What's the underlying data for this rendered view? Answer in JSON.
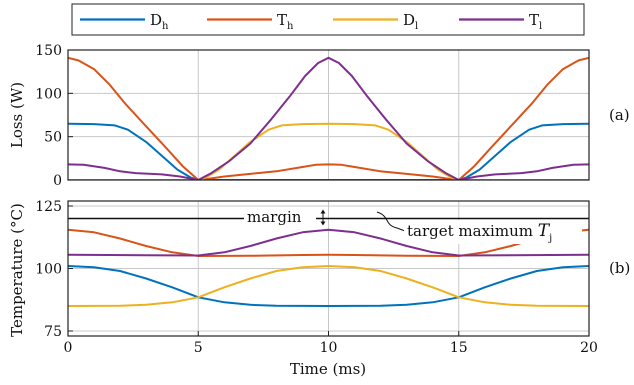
{
  "chart_data": [
    {
      "type": "line",
      "panel_label": "(a)",
      "xlabel": "",
      "ylabel": "Loss (W)",
      "xlim": [
        0,
        20
      ],
      "ylim": [
        0,
        150
      ],
      "xticks": [
        0,
        5,
        10,
        15,
        20
      ],
      "yticks": [
        0,
        50,
        100,
        150
      ],
      "grid": true,
      "legend": {
        "placement": "top",
        "entries": [
          {
            "base": "D",
            "sub": "h",
            "color": "#0072BD"
          },
          {
            "base": "T",
            "sub": "h",
            "color": "#D95319"
          },
          {
            "base": "D",
            "sub": "l",
            "color": "#EDB120"
          },
          {
            "base": "T",
            "sub": "l",
            "color": "#7E2F8E"
          }
        ]
      },
      "series": [
        {
          "label": "Dh",
          "color": "#0072BD",
          "points": [
            [
              0,
              65
            ],
            [
              1,
              64.5
            ],
            [
              1.8,
              63
            ],
            [
              2.3,
              58
            ],
            [
              3,
              44
            ],
            [
              3.6,
              28
            ],
            [
              4.2,
              12
            ],
            [
              4.7,
              3
            ],
            [
              5,
              0
            ],
            [
              15,
              0
            ],
            [
              15.3,
              3
            ],
            [
              15.8,
              12
            ],
            [
              16.4,
              28
            ],
            [
              17,
              44
            ],
            [
              17.7,
              58
            ],
            [
              18.2,
              63
            ],
            [
              19,
              64.5
            ],
            [
              20,
              65
            ]
          ]
        },
        {
          "label": "Th",
          "color": "#D95319",
          "points": [
            [
              0,
              141
            ],
            [
              0.4,
              138
            ],
            [
              1,
              128
            ],
            [
              1.6,
              110
            ],
            [
              2.2,
              88
            ],
            [
              3,
              62
            ],
            [
              3.8,
              36
            ],
            [
              4.4,
              16
            ],
            [
              5,
              0
            ],
            [
              5.3,
              1
            ],
            [
              6,
              4
            ],
            [
              7,
              7
            ],
            [
              8,
              10
            ],
            [
              9,
              15
            ],
            [
              9.5,
              17.5
            ],
            [
              10,
              18
            ],
            [
              10.5,
              17.5
            ],
            [
              11,
              15
            ],
            [
              12,
              10
            ],
            [
              13,
              7
            ],
            [
              14,
              4
            ],
            [
              14.7,
              1
            ],
            [
              15,
              0
            ],
            [
              15.6,
              16
            ],
            [
              16.2,
              36
            ],
            [
              17,
              62
            ],
            [
              17.8,
              88
            ],
            [
              18.4,
              110
            ],
            [
              19,
              128
            ],
            [
              19.6,
              138
            ],
            [
              20,
              141
            ]
          ]
        },
        {
          "label": "Dl",
          "color": "#EDB120",
          "points": [
            [
              0,
              0
            ],
            [
              5,
              0
            ],
            [
              5.3,
              3
            ],
            [
              5.8,
              12
            ],
            [
              6.4,
              28
            ],
            [
              7,
              44
            ],
            [
              7.7,
              58
            ],
            [
              8.2,
              63
            ],
            [
              9,
              64.5
            ],
            [
              10,
              65
            ],
            [
              11,
              64.5
            ],
            [
              11.8,
              63
            ],
            [
              12.3,
              58
            ],
            [
              13,
              44
            ],
            [
              13.6,
              28
            ],
            [
              14.2,
              12
            ],
            [
              14.7,
              3
            ],
            [
              15,
              0
            ],
            [
              20,
              0
            ]
          ]
        },
        {
          "label": "Tl",
          "color": "#7E2F8E",
          "points": [
            [
              0,
              18
            ],
            [
              0.6,
              17.5
            ],
            [
              1.4,
              14
            ],
            [
              2,
              10
            ],
            [
              2.6,
              8
            ],
            [
              3.6,
              6.5
            ],
            [
              4.3,
              4
            ],
            [
              5,
              0
            ],
            [
              5.5,
              8
            ],
            [
              6.2,
              22
            ],
            [
              7,
              42
            ],
            [
              7.8,
              70
            ],
            [
              8.5,
              96
            ],
            [
              9.1,
              120
            ],
            [
              9.6,
              135
            ],
            [
              10,
              141
            ],
            [
              10.4,
              135
            ],
            [
              10.9,
              120
            ],
            [
              11.5,
              96
            ],
            [
              12.2,
              70
            ],
            [
              13,
              42
            ],
            [
              13.8,
              22
            ],
            [
              14.5,
              8
            ],
            [
              15,
              0
            ],
            [
              15.7,
              4
            ],
            [
              16.4,
              6.5
            ],
            [
              17.4,
              8
            ],
            [
              18,
              10
            ],
            [
              18.6,
              14
            ],
            [
              19.4,
              17.5
            ],
            [
              20,
              18
            ]
          ]
        }
      ]
    },
    {
      "type": "line",
      "panel_label": "(b)",
      "xlabel": "Time (ms)",
      "ylabel": "Temperature (°C)",
      "xlim": [
        0,
        20
      ],
      "ylim": [
        73,
        127
      ],
      "xticks": [
        0,
        5,
        10,
        15,
        20
      ],
      "yticks": [
        75,
        100,
        125
      ],
      "grid": true,
      "target_line": 120,
      "annotations": {
        "margin": "margin",
        "target_prefix": "target maximum ",
        "target_var": "T",
        "target_sub": "j"
      },
      "series": [
        {
          "label": "Dh",
          "color": "#0072BD",
          "points": [
            [
              0,
              101
            ],
            [
              1,
              100.5
            ],
            [
              2,
              99
            ],
            [
              3,
              96
            ],
            [
              4,
              92.5
            ],
            [
              5,
              88.5
            ],
            [
              6,
              86.5
            ],
            [
              7,
              85.5
            ],
            [
              8,
              85.1
            ],
            [
              10,
              85
            ],
            [
              12,
              85.1
            ],
            [
              13,
              85.5
            ],
            [
              14,
              86.5
            ],
            [
              15,
              88.5
            ],
            [
              16,
              92.5
            ],
            [
              17,
              96
            ],
            [
              18,
              99
            ],
            [
              19,
              100.5
            ],
            [
              20,
              101
            ]
          ]
        },
        {
          "label": "Th",
          "color": "#D95319",
          "points": [
            [
              0,
              115.5
            ],
            [
              1,
              114.5
            ],
            [
              2,
              112
            ],
            [
              3,
              109
            ],
            [
              4,
              106.5
            ],
            [
              5,
              105
            ],
            [
              7,
              105.1
            ],
            [
              9,
              105.4
            ],
            [
              10,
              105.5
            ],
            [
              11,
              105.4
            ],
            [
              13,
              105.1
            ],
            [
              15,
              105
            ],
            [
              16,
              106.5
            ],
            [
              17,
              109
            ],
            [
              18,
              112
            ],
            [
              19,
              114.5
            ],
            [
              20,
              115.5
            ]
          ]
        },
        {
          "label": "Dl",
          "color": "#EDB120",
          "points": [
            [
              0,
              85
            ],
            [
              2,
              85.1
            ],
            [
              3,
              85.5
            ],
            [
              4,
              86.5
            ],
            [
              5,
              88.5
            ],
            [
              6,
              92.5
            ],
            [
              7,
              96
            ],
            [
              8,
              99
            ],
            [
              9,
              100.5
            ],
            [
              10,
              101
            ],
            [
              11,
              100.5
            ],
            [
              12,
              99
            ],
            [
              13,
              96
            ],
            [
              14,
              92.5
            ],
            [
              15,
              88.5
            ],
            [
              16,
              86.5
            ],
            [
              17,
              85.5
            ],
            [
              18,
              85.1
            ],
            [
              20,
              85
            ]
          ]
        },
        {
          "label": "Tl",
          "color": "#7E2F8E",
          "points": [
            [
              0,
              105.5
            ],
            [
              3,
              105.3
            ],
            [
              5,
              105.2
            ],
            [
              6,
              106.5
            ],
            [
              7,
              109
            ],
            [
              8,
              112
            ],
            [
              9,
              114.5
            ],
            [
              10,
              115.5
            ],
            [
              11,
              114.5
            ],
            [
              12,
              112
            ],
            [
              13,
              109
            ],
            [
              14,
              106.5
            ],
            [
              15,
              105.2
            ],
            [
              17,
              105.3
            ],
            [
              20,
              105.5
            ]
          ]
        }
      ]
    }
  ]
}
